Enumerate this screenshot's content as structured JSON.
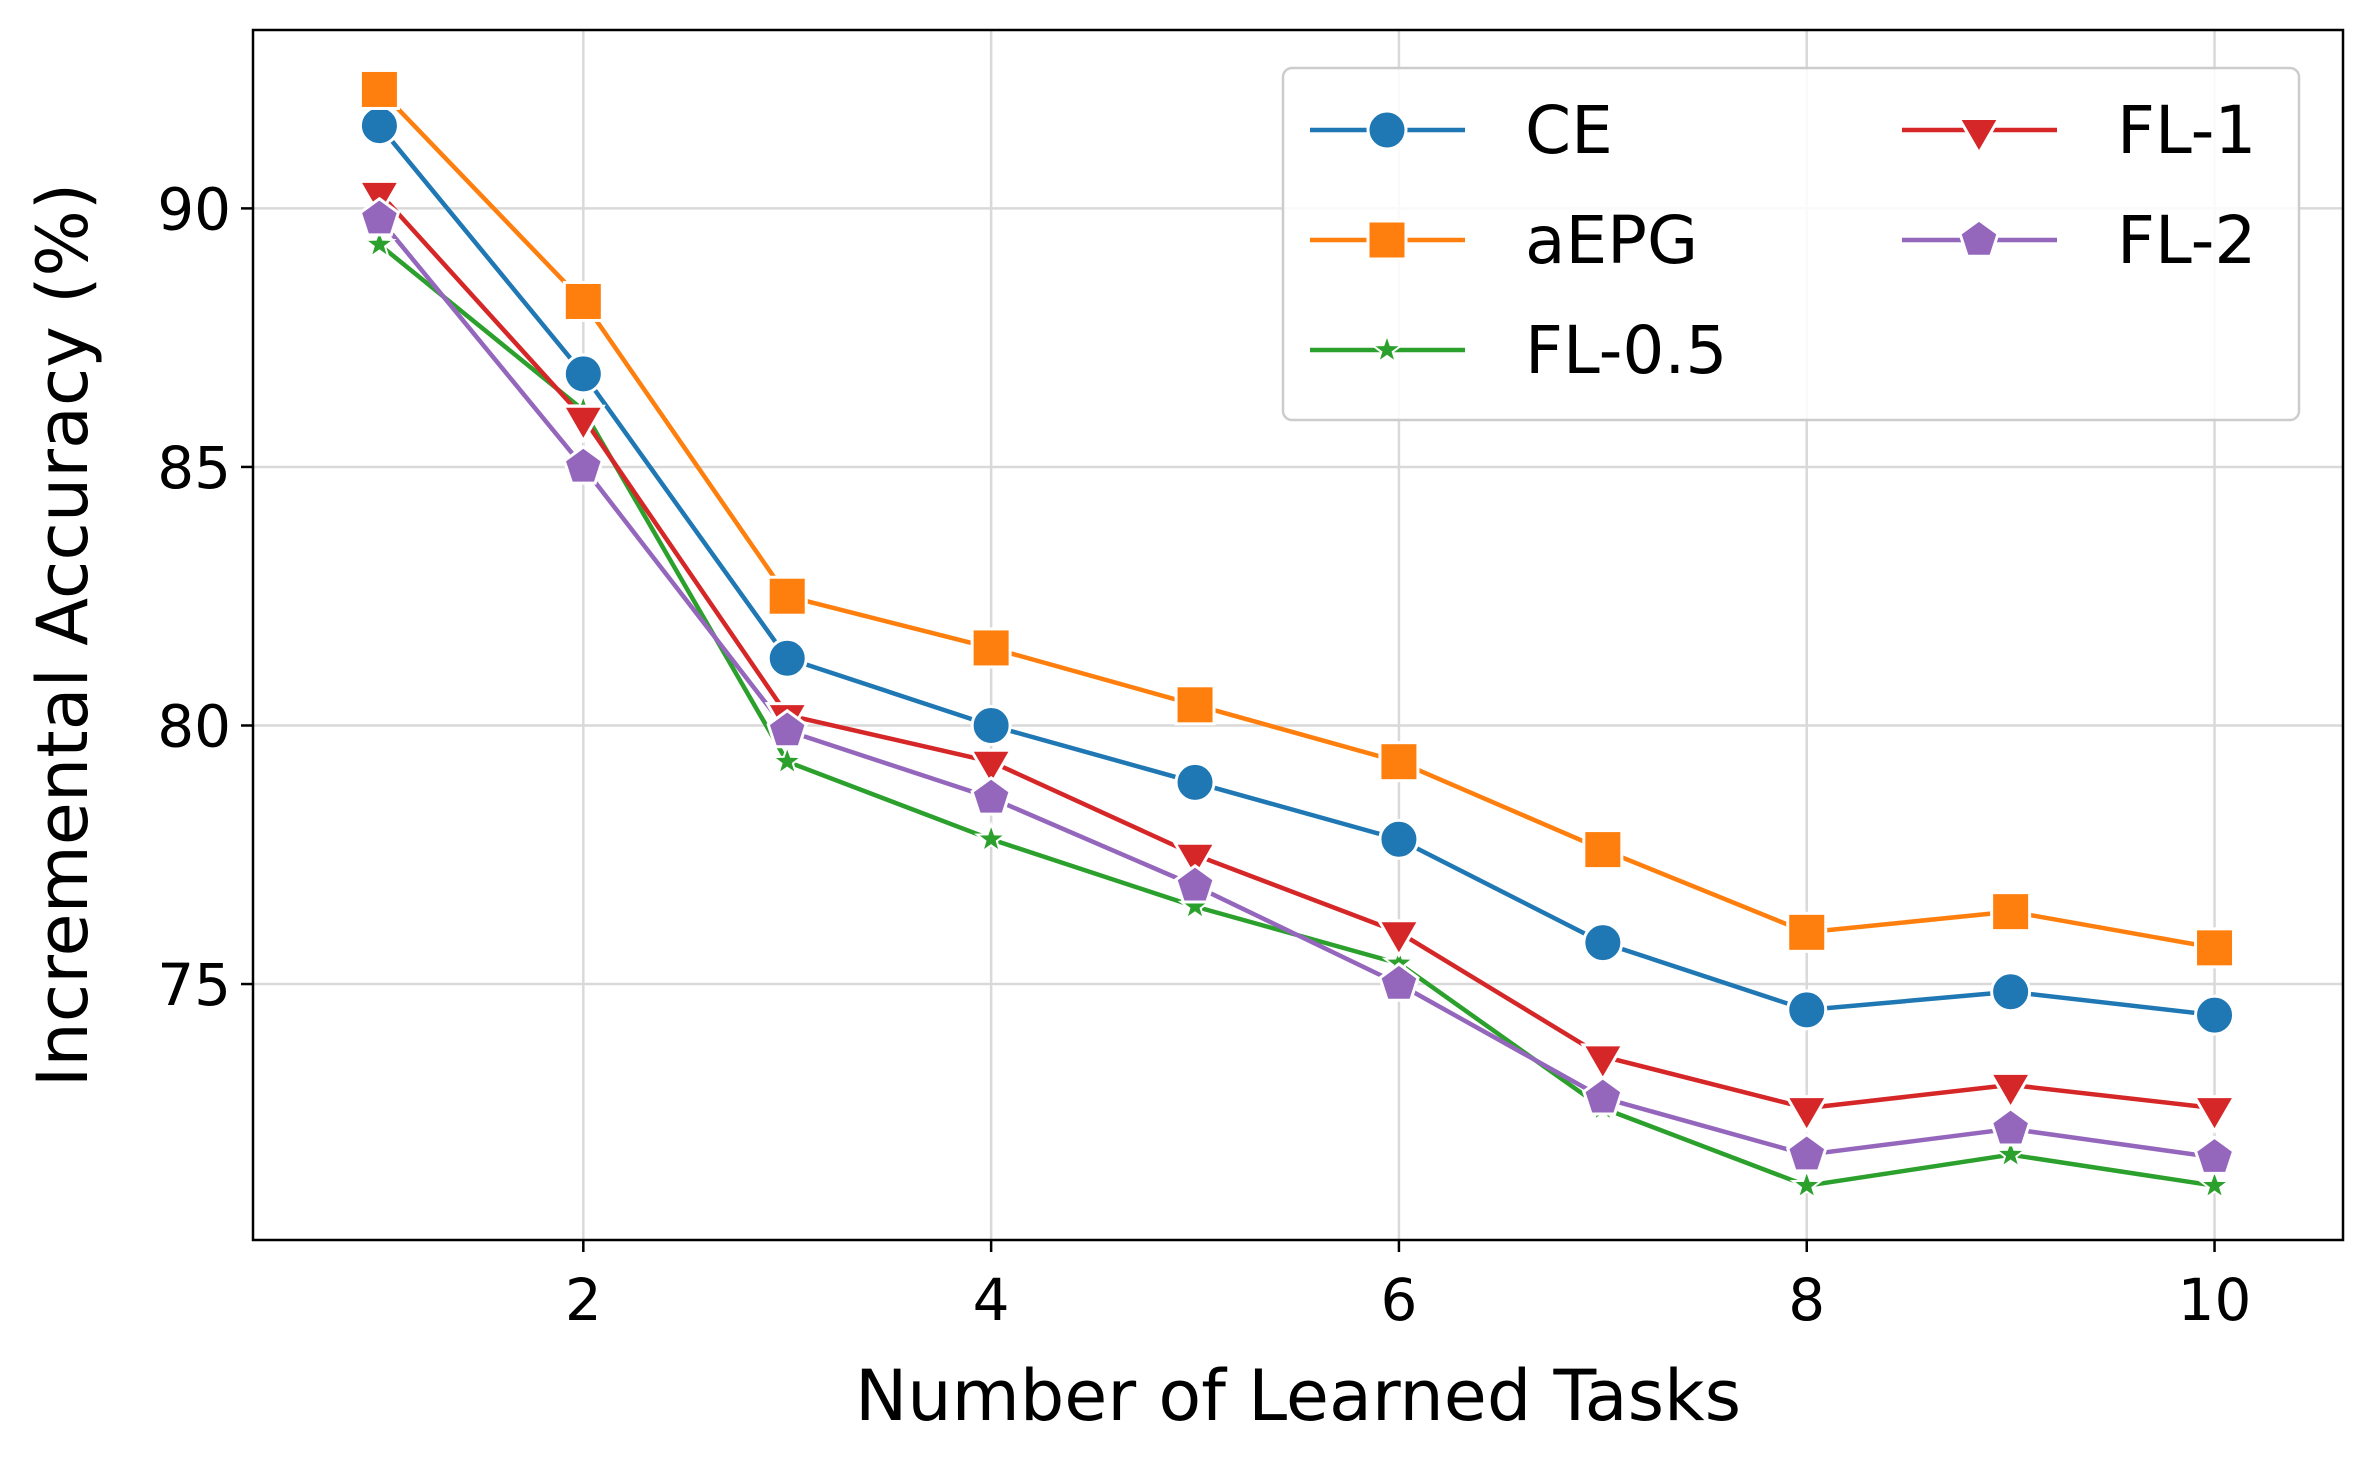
{
  "chart_data": {
    "type": "line",
    "title": "",
    "xlabel": "Number of Learned Tasks",
    "ylabel": "Incremental Accuracy (%)",
    "x": [
      1,
      2,
      3,
      4,
      5,
      6,
      7,
      8,
      9,
      10
    ],
    "xlim": [
      0.38,
      10.63
    ],
    "ylim": [
      70.05,
      93.45
    ],
    "xticks": [
      2,
      4,
      6,
      8,
      10
    ],
    "yticks": [
      75,
      80,
      85,
      90
    ],
    "grid": true,
    "legend_position": "top-right",
    "legend_columns": 2,
    "series": [
      {
        "name": "CE",
        "color": "#1f77b4",
        "marker": "circle",
        "values": [
          91.6,
          86.8,
          81.3,
          80.0,
          78.9,
          77.8,
          75.8,
          74.5,
          74.85,
          74.4
        ]
      },
      {
        "name": "aEPG",
        "color": "#ff7f0e",
        "marker": "square",
        "values": [
          92.3,
          88.2,
          82.5,
          81.5,
          80.4,
          79.3,
          77.6,
          76.0,
          76.4,
          75.7
        ]
      },
      {
        "name": "FL-0.5",
        "color": "#2ca02c",
        "marker": "star",
        "values": [
          89.3,
          86.1,
          79.3,
          77.8,
          76.5,
          75.4,
          72.6,
          71.1,
          71.7,
          71.1
        ]
      },
      {
        "name": "FL-1",
        "color": "#d62728",
        "marker": "triangle-down",
        "values": [
          90.3,
          85.95,
          80.2,
          79.3,
          77.5,
          76.0,
          73.6,
          72.6,
          73.05,
          72.6
        ]
      },
      {
        "name": "FL-2",
        "color": "#9467bd",
        "marker": "pentagon",
        "values": [
          89.8,
          85.0,
          79.9,
          78.6,
          76.9,
          75.0,
          72.8,
          71.7,
          72.2,
          71.65
        ]
      }
    ]
  }
}
